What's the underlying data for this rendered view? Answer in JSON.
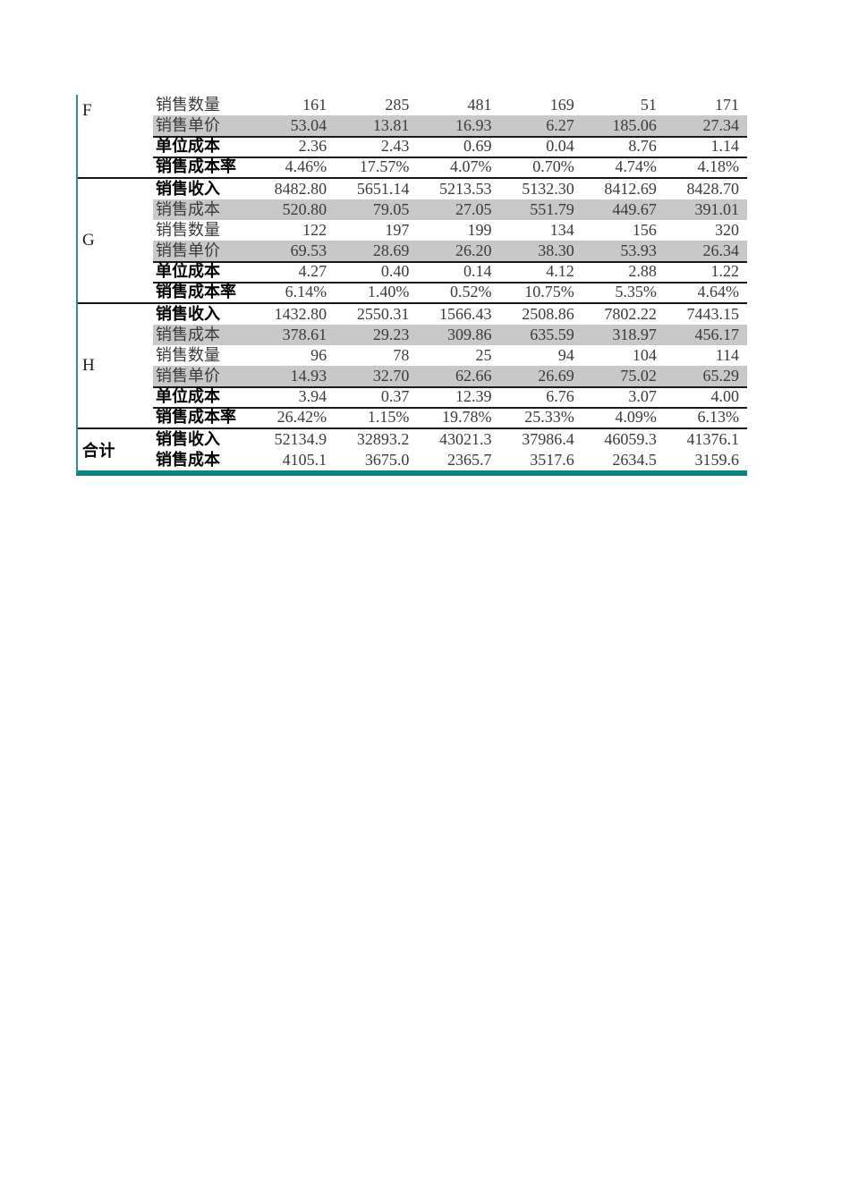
{
  "colors": {
    "accent_teal": "#0E8383",
    "band_gray": "#C8C8C8",
    "divider_black": "#141414"
  },
  "table": {
    "row_label_legend": {
      "revenue": "销售收入",
      "cost": "销售成本",
      "quantity": "销售数量",
      "unit_price": "销售单价",
      "unit_cost": "单位成本",
      "cost_rate": "销售成本率"
    },
    "groups": [
      {
        "label": "F",
        "bold_label": false,
        "rows": [
          {
            "label": "销售数量",
            "bold": false,
            "gray": false,
            "topline": false,
            "values": [
              "161",
              "285",
              "481",
              "169",
              "51",
              "171"
            ]
          },
          {
            "label": "销售单价",
            "bold": false,
            "gray": true,
            "topline": false,
            "values": [
              "53.04",
              "13.81",
              "16.93",
              "6.27",
              "185.06",
              "27.34"
            ]
          },
          {
            "label": "单位成本",
            "bold": true,
            "gray": false,
            "topline": true,
            "values": [
              "2.36",
              "2.43",
              "0.69",
              "0.04",
              "8.76",
              "1.14"
            ]
          },
          {
            "label": "销售成本率",
            "bold": true,
            "gray": false,
            "topline": true,
            "values": [
              "4.46%",
              "17.57%",
              "4.07%",
              "0.70%",
              "4.74%",
              "4.18%"
            ]
          }
        ]
      },
      {
        "label": "G",
        "bold_label": false,
        "rows": [
          {
            "label": "销售收入",
            "bold": true,
            "gray": false,
            "topline": false,
            "values": [
              "8482.80",
              "5651.14",
              "5213.53",
              "5132.30",
              "8412.69",
              "8428.70"
            ]
          },
          {
            "label": "销售成本",
            "bold": false,
            "gray": true,
            "topline": false,
            "values": [
              "520.80",
              "79.05",
              "27.05",
              "551.79",
              "449.67",
              "391.01"
            ]
          },
          {
            "label": "销售数量",
            "bold": false,
            "gray": false,
            "topline": false,
            "values": [
              "122",
              "197",
              "199",
              "134",
              "156",
              "320"
            ]
          },
          {
            "label": "销售单价",
            "bold": false,
            "gray": true,
            "topline": false,
            "values": [
              "69.53",
              "28.69",
              "26.20",
              "38.30",
              "53.93",
              "26.34"
            ]
          },
          {
            "label": "单位成本",
            "bold": true,
            "gray": false,
            "topline": true,
            "values": [
              "4.27",
              "0.40",
              "0.14",
              "4.12",
              "2.88",
              "1.22"
            ]
          },
          {
            "label": "销售成本率",
            "bold": true,
            "gray": false,
            "topline": true,
            "values": [
              "6.14%",
              "1.40%",
              "0.52%",
              "10.75%",
              "5.35%",
              "4.64%"
            ]
          }
        ]
      },
      {
        "label": "H",
        "bold_label": false,
        "rows": [
          {
            "label": "销售收入",
            "bold": true,
            "gray": false,
            "topline": false,
            "values": [
              "1432.80",
              "2550.31",
              "1566.43",
              "2508.86",
              "7802.22",
              "7443.15"
            ]
          },
          {
            "label": "销售成本",
            "bold": false,
            "gray": true,
            "topline": false,
            "values": [
              "378.61",
              "29.23",
              "309.86",
              "635.59",
              "318.97",
              "456.17"
            ]
          },
          {
            "label": "销售数量",
            "bold": false,
            "gray": false,
            "topline": false,
            "values": [
              "96",
              "78",
              "25",
              "94",
              "104",
              "114"
            ]
          },
          {
            "label": "销售单价",
            "bold": false,
            "gray": true,
            "topline": false,
            "values": [
              "14.93",
              "32.70",
              "62.66",
              "26.69",
              "75.02",
              "65.29"
            ]
          },
          {
            "label": "单位成本",
            "bold": true,
            "gray": false,
            "topline": true,
            "values": [
              "3.94",
              "0.37",
              "12.39",
              "6.76",
              "3.07",
              "4.00"
            ]
          },
          {
            "label": "销售成本率",
            "bold": true,
            "gray": false,
            "topline": true,
            "values": [
              "26.42%",
              "1.15%",
              "19.78%",
              "25.33%",
              "4.09%",
              "6.13%"
            ]
          }
        ]
      },
      {
        "label": "合计",
        "bold_label": true,
        "rows": [
          {
            "label": "销售收入",
            "bold": true,
            "gray": false,
            "topline": false,
            "values": [
              "52134.9",
              "32893.2",
              "43021.3",
              "37986.4",
              "46059.3",
              "41376.1"
            ]
          },
          {
            "label": "销售成本",
            "bold": true,
            "gray": false,
            "topline": false,
            "values": [
              "4105.1",
              "3675.0",
              "2365.7",
              "3517.6",
              "2634.5",
              "3159.6"
            ]
          }
        ]
      }
    ]
  }
}
